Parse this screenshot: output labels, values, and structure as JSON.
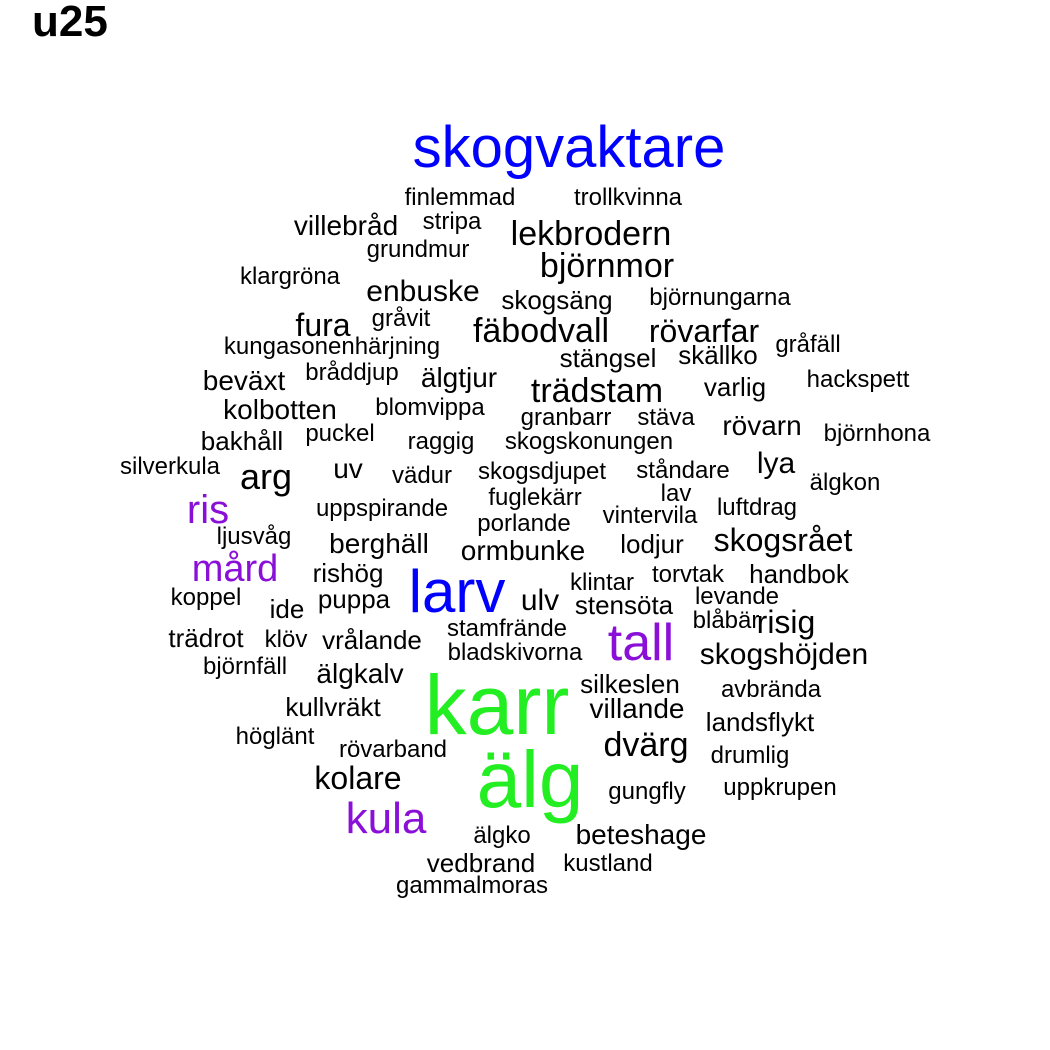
{
  "title": "u25",
  "colors": {
    "black": "#000000",
    "blue": "#0000ff",
    "purple": "#8a10d8",
    "green": "#22ee22"
  },
  "words": [
    {
      "text": "skogvaktare",
      "color": "blue"
    },
    {
      "text": "finlemmad",
      "color": "black"
    },
    {
      "text": "trollkvinna",
      "color": "black"
    },
    {
      "text": "villebråd",
      "color": "black"
    },
    {
      "text": "stripa",
      "color": "black"
    },
    {
      "text": "lekbrodern",
      "color": "black"
    },
    {
      "text": "grundmur",
      "color": "black"
    },
    {
      "text": "björnmor",
      "color": "black"
    },
    {
      "text": "klargröna",
      "color": "black"
    },
    {
      "text": "enbuske",
      "color": "black"
    },
    {
      "text": "skogsäng",
      "color": "black"
    },
    {
      "text": "björnungarna",
      "color": "black"
    },
    {
      "text": "fura",
      "color": "black"
    },
    {
      "text": "gråvit",
      "color": "black"
    },
    {
      "text": "fäbodvall",
      "color": "black"
    },
    {
      "text": "rövarfar",
      "color": "black"
    },
    {
      "text": "gråfäll",
      "color": "black"
    },
    {
      "text": "kungasonenhärjning",
      "color": "black"
    },
    {
      "text": "stängsel",
      "color": "black"
    },
    {
      "text": "skällko",
      "color": "black"
    },
    {
      "text": "beväxt",
      "color": "black"
    },
    {
      "text": "bråddjup",
      "color": "black"
    },
    {
      "text": "älgtjur",
      "color": "black"
    },
    {
      "text": "trädstam",
      "color": "black"
    },
    {
      "text": "varlig",
      "color": "black"
    },
    {
      "text": "hackspett",
      "color": "black"
    },
    {
      "text": "kolbotten",
      "color": "black"
    },
    {
      "text": "blomvippa",
      "color": "black"
    },
    {
      "text": "granbarr",
      "color": "black"
    },
    {
      "text": "stäva",
      "color": "black"
    },
    {
      "text": "rövarn",
      "color": "black"
    },
    {
      "text": "björnhona",
      "color": "black"
    },
    {
      "text": "bakhåll",
      "color": "black"
    },
    {
      "text": "puckel",
      "color": "black"
    },
    {
      "text": "raggig",
      "color": "black"
    },
    {
      "text": "skogskonungen",
      "color": "black"
    },
    {
      "text": "lya",
      "color": "black"
    },
    {
      "text": "silverkula",
      "color": "black"
    },
    {
      "text": "arg",
      "color": "black"
    },
    {
      "text": "uv",
      "color": "black"
    },
    {
      "text": "vädur",
      "color": "black"
    },
    {
      "text": "skogsdjupet",
      "color": "black"
    },
    {
      "text": "ståndare",
      "color": "black"
    },
    {
      "text": "älgkon",
      "color": "black"
    },
    {
      "text": "ris",
      "color": "purple"
    },
    {
      "text": "fuglekärr",
      "color": "black"
    },
    {
      "text": "lav",
      "color": "black"
    },
    {
      "text": "uppspirande",
      "color": "black"
    },
    {
      "text": "luftdrag",
      "color": "black"
    },
    {
      "text": "vintervila",
      "color": "black"
    },
    {
      "text": "porlande",
      "color": "black"
    },
    {
      "text": "ljusvåg",
      "color": "black"
    },
    {
      "text": "berghäll",
      "color": "black"
    },
    {
      "text": "ormbunke",
      "color": "black"
    },
    {
      "text": "lodjur",
      "color": "black"
    },
    {
      "text": "skogsrået",
      "color": "black"
    },
    {
      "text": "mård",
      "color": "purple"
    },
    {
      "text": "rishög",
      "color": "black"
    },
    {
      "text": "larv",
      "color": "blue"
    },
    {
      "text": "klintar",
      "color": "black"
    },
    {
      "text": "torvtak",
      "color": "black"
    },
    {
      "text": "handbok",
      "color": "black"
    },
    {
      "text": "koppel",
      "color": "black"
    },
    {
      "text": "ide",
      "color": "black"
    },
    {
      "text": "puppa",
      "color": "black"
    },
    {
      "text": "ulv",
      "color": "black"
    },
    {
      "text": "stensöta",
      "color": "black"
    },
    {
      "text": "levande",
      "color": "black"
    },
    {
      "text": "risig",
      "color": "black"
    },
    {
      "text": "blåbär",
      "color": "black"
    },
    {
      "text": "trädrot",
      "color": "black"
    },
    {
      "text": "klöv",
      "color": "black"
    },
    {
      "text": "vrålande",
      "color": "black"
    },
    {
      "text": "stamfrände",
      "color": "black"
    },
    {
      "text": "tall",
      "color": "purple"
    },
    {
      "text": "bladskivorna",
      "color": "black"
    },
    {
      "text": "skogshöjden",
      "color": "black"
    },
    {
      "text": "björnfäll",
      "color": "black"
    },
    {
      "text": "älgkalv",
      "color": "black"
    },
    {
      "text": "karr",
      "color": "green"
    },
    {
      "text": "silkeslen",
      "color": "black"
    },
    {
      "text": "avbrända",
      "color": "black"
    },
    {
      "text": "kullvräkt",
      "color": "black"
    },
    {
      "text": "villande",
      "color": "black"
    },
    {
      "text": "landsflykt",
      "color": "black"
    },
    {
      "text": "höglänt",
      "color": "black"
    },
    {
      "text": "rövarband",
      "color": "black"
    },
    {
      "text": "dvärg",
      "color": "black"
    },
    {
      "text": "drumlig",
      "color": "black"
    },
    {
      "text": "älg",
      "color": "green"
    },
    {
      "text": "kolare",
      "color": "black"
    },
    {
      "text": "gungfly",
      "color": "black"
    },
    {
      "text": "uppkrupen",
      "color": "black"
    },
    {
      "text": "kula",
      "color": "purple"
    },
    {
      "text": "älgko",
      "color": "black"
    },
    {
      "text": "beteshage",
      "color": "black"
    },
    {
      "text": "vedbrand",
      "color": "black"
    },
    {
      "text": "kustland",
      "color": "black"
    },
    {
      "text": "gammalmoras",
      "color": "black"
    }
  ]
}
